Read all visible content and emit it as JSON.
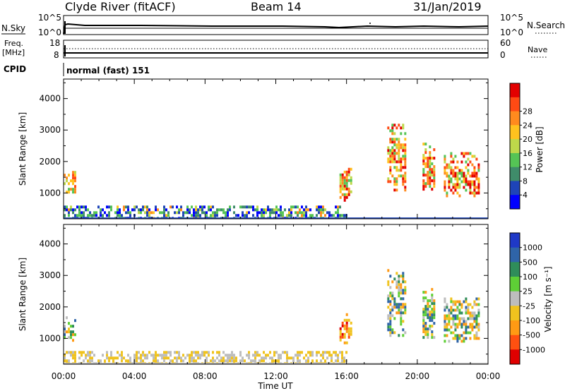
{
  "header": {
    "station": "Clyde River (fitACF)",
    "beam": "Beam 14",
    "date": "31/Jan/2019"
  },
  "panels": {
    "nsky": {
      "left_label": "N.Sky",
      "left_ticks": [
        "10^5",
        "10^0"
      ],
      "right_label": "N.Search",
      "right_ticks": [
        "10^5",
        "10^0"
      ]
    },
    "freq": {
      "left_label_1": "Freq.",
      "left_label_2": "[MHz]",
      "left_ticks": [
        "18",
        "8"
      ],
      "right_label": "Nave",
      "right_ticks": [
        "60",
        "0"
      ]
    },
    "cpid": {
      "label": "CPID",
      "text": "normal (fast) 151"
    }
  },
  "chart_data": [
    {
      "type": "heatmap",
      "title": "",
      "ylabel": "Slant Range [km]",
      "ylim": [
        180,
        4620
      ],
      "yticks": [
        "1000",
        "2000",
        "3000",
        "4000"
      ],
      "colorbar_label": "Power [dB]",
      "colorbar_ticks": [
        "4",
        "8",
        "12",
        "16",
        "20",
        "24",
        "28"
      ],
      "colors": [
        "#0000ff",
        "#1e44b8",
        "#3f8c6a",
        "#55c455",
        "#bed84a",
        "#ffc21e",
        "#ff8a1e",
        "#ff4a14",
        "#e30000"
      ],
      "echo_regions": [
        {
          "t": [
            0.0,
            0.6
          ],
          "range": [
            900,
            1700
          ],
          "level": "16-28 dB"
        },
        {
          "t": [
            0.0,
            16.0
          ],
          "range": [
            180,
            600
          ],
          "level": "4-24 dB"
        },
        {
          "t": [
            15.6,
            16.3
          ],
          "range": [
            800,
            1800
          ],
          "level": "12-24 dB"
        },
        {
          "t": [
            18.3,
            19.3
          ],
          "range": [
            1100,
            3200
          ],
          "level": "12-24 dB"
        },
        {
          "t": [
            20.3,
            21.0
          ],
          "range": [
            1000,
            2600
          ],
          "level": "16-28 dB"
        },
        {
          "t": [
            21.5,
            23.5
          ],
          "range": [
            900,
            2300
          ],
          "level": "12-28 dB"
        }
      ]
    },
    {
      "type": "heatmap",
      "title": "",
      "ylabel": "Slant Range [km]",
      "ylim": [
        180,
        4620
      ],
      "yticks": [
        "1000",
        "2000",
        "3000",
        "4000"
      ],
      "xlabel": "Time UT",
      "xticks": [
        "00:00",
        "04:00",
        "08:00",
        "12:00",
        "16:00",
        "20:00",
        "00:00"
      ],
      "xlim": [
        0,
        24
      ],
      "colorbar_label": "Velocity [m s⁻¹]",
      "colorbar_ticks": [
        "1000",
        "500",
        "100",
        "25",
        "-25",
        "-100",
        "-500",
        "-1000"
      ],
      "colors": [
        "#1f39c7",
        "#2f64a8",
        "#2f8d5a",
        "#5ecf36",
        "#bdbdbd",
        "#f0c31e",
        "#ff9a14",
        "#ff5010",
        "#e00000"
      ],
      "echo_regions": [
        {
          "t": [
            0.0,
            0.6
          ],
          "range": [
            900,
            1700
          ],
          "level": "-100 to 100 m/s"
        },
        {
          "t": [
            0.0,
            16.0
          ],
          "range": [
            180,
            600
          ],
          "level": "-100 to 25 m/s"
        },
        {
          "t": [
            15.6,
            16.3
          ],
          "range": [
            800,
            1800
          ],
          "level": "-500 to -100 m/s"
        },
        {
          "t": [
            18.3,
            19.3
          ],
          "range": [
            1100,
            3200
          ],
          "level": "-100 to 500 m/s"
        },
        {
          "t": [
            20.3,
            21.0
          ],
          "range": [
            1000,
            2600
          ],
          "level": "-100 to 100 m/s"
        },
        {
          "t": [
            21.5,
            23.5
          ],
          "range": [
            900,
            2300
          ],
          "level": "-100 to 25 m/s"
        }
      ]
    }
  ]
}
